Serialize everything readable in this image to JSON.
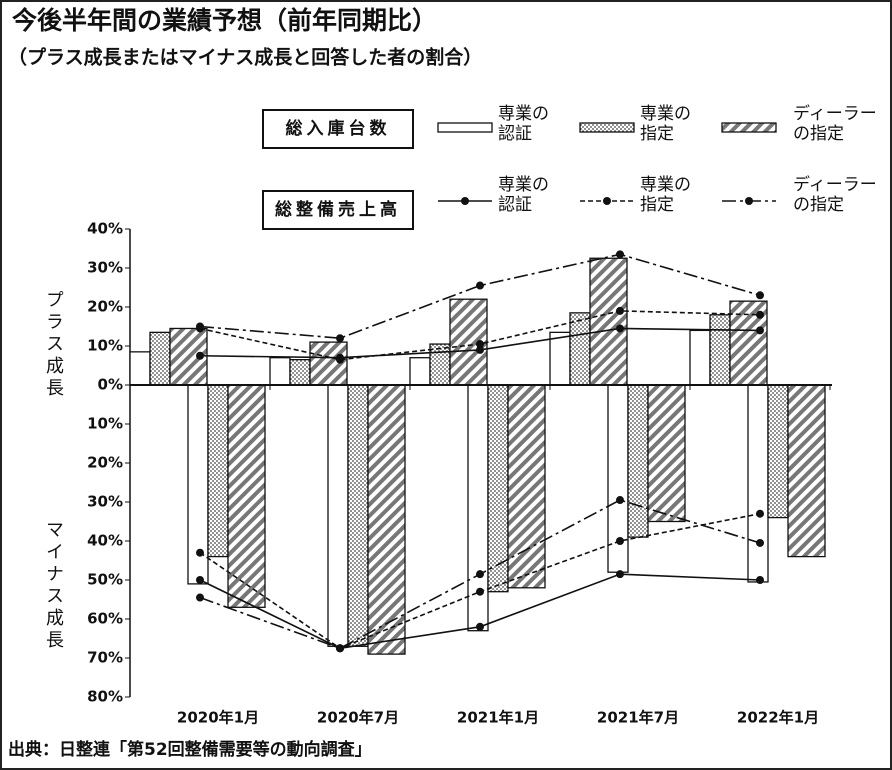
{
  "chart_data": {
    "type": "bar",
    "title": "今後半年間の業績予想（前年同期比）",
    "subtitle": "（プラス成長またはマイナス成長と回答した者の割合）",
    "y_labels": [
      "プラス成長",
      "マイナス成長"
    ],
    "categories": [
      "2020年1月",
      "2020年7月",
      "2021年1月",
      "2021年7月",
      "2022年1月"
    ],
    "ylim": [
      -80,
      40
    ],
    "yticks": [
      {
        "value": 40,
        "label": "40%"
      },
      {
        "value": 30,
        "label": "30%"
      },
      {
        "value": 20,
        "label": "20%"
      },
      {
        "value": 10,
        "label": "10%"
      },
      {
        "value": 0,
        "label": "0%"
      },
      {
        "value": -10,
        "label": "10%"
      },
      {
        "value": -20,
        "label": "20%"
      },
      {
        "value": -30,
        "label": "30%"
      },
      {
        "value": -40,
        "label": "40%"
      },
      {
        "value": -50,
        "label": "50%"
      },
      {
        "value": -60,
        "label": "60%"
      },
      {
        "value": -70,
        "label": "70%"
      },
      {
        "value": -80,
        "label": "80%"
      }
    ],
    "bar_group": {
      "name": "総入庫台数",
      "series": [
        {
          "name": "専業の認証",
          "plus": [
            8.5,
            7,
            7,
            13.5,
            14
          ],
          "minus": [
            -51,
            -67,
            -63,
            -48,
            -50.5
          ]
        },
        {
          "name": "専業の指定",
          "plus": [
            13.5,
            6.5,
            10.5,
            18.5,
            18
          ],
          "minus": [
            -44,
            -67,
            -53,
            -39,
            -34
          ]
        },
        {
          "name": "ディーラーの指定",
          "plus": [
            14.5,
            11,
            22,
            32.5,
            21.5
          ],
          "minus": [
            -57,
            -69,
            -52,
            -35,
            -44
          ]
        }
      ]
    },
    "line_group": {
      "name": "総整備売上高",
      "series": [
        {
          "name": "専業の認証",
          "plus": [
            7.5,
            7,
            9,
            14.5,
            14
          ],
          "minus": [
            -50,
            -67.5,
            -62,
            -48.5,
            -50
          ]
        },
        {
          "name": "専業の指定",
          "plus": [
            14.5,
            6.5,
            10.5,
            19,
            18
          ],
          "minus": [
            -43,
            -67.5,
            -53,
            -40,
            -33
          ]
        },
        {
          "name": "ディーラーの指定",
          "plus": [
            15,
            12,
            25.5,
            33.5,
            23
          ],
          "minus": [
            -54.5,
            -67.5,
            -48.5,
            -29.5,
            -40.5
          ]
        }
      ]
    },
    "source": "出典：日整連「第52回整備需要等の動向調査」"
  }
}
